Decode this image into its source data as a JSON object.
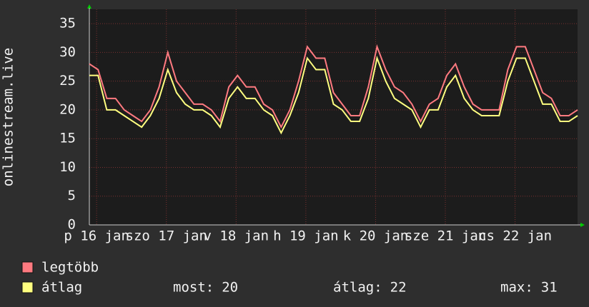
{
  "chart_data": {
    "type": "line",
    "y_label": "onlinestream.live",
    "x": [
      0,
      3,
      6,
      9,
      12,
      15,
      18,
      21,
      24,
      27,
      30,
      33,
      36,
      39,
      42,
      45,
      48,
      51,
      54,
      57,
      60,
      63,
      66,
      69,
      72,
      75,
      78,
      81,
      84,
      87,
      90,
      93,
      96,
      99,
      102,
      105,
      108,
      111,
      114,
      117,
      120,
      123,
      126,
      129,
      132,
      135,
      138,
      141,
      144,
      147,
      150,
      153,
      156,
      159,
      162,
      165,
      168
    ],
    "xlim": [
      0,
      168
    ],
    "xticks": [
      {
        "value": 2.5,
        "label": "p 16 jan"
      },
      {
        "value": 26.5,
        "label": "szo 17 jan"
      },
      {
        "value": 50.5,
        "label": "v 18 jan"
      },
      {
        "value": 74.5,
        "label": "h 19 jan"
      },
      {
        "value": 98.5,
        "label": "k 20 jan"
      },
      {
        "value": 122.5,
        "label": "sze 21 jan"
      },
      {
        "value": 146.5,
        "label": "cs 22 jan"
      }
    ],
    "ylim": [
      0,
      37.5
    ],
    "yticks": [
      0,
      5,
      10,
      15,
      20,
      25,
      30,
      35
    ],
    "grid": true,
    "series": [
      {
        "name": "legtöbb",
        "color": "#ff7a80",
        "values": [
          28,
          27,
          22,
          22,
          20,
          19,
          18,
          20,
          24,
          30,
          25,
          23,
          21,
          21,
          20,
          18,
          24,
          26,
          24,
          24,
          21,
          20,
          17,
          20,
          25,
          31,
          29,
          29,
          23,
          21,
          19,
          19,
          24,
          31,
          27,
          24,
          23,
          21,
          18,
          21,
          22,
          26,
          28,
          24,
          21,
          20,
          20,
          20,
          27,
          31,
          31,
          27,
          23,
          22,
          19,
          19,
          20
        ]
      },
      {
        "name": "átlag",
        "color": "#ffff80",
        "values": [
          26,
          26,
          20,
          20,
          19,
          18,
          17,
          19,
          22,
          27,
          23,
          21,
          20,
          20,
          19,
          17,
          22,
          24,
          22,
          22,
          20,
          19,
          16,
          19,
          23,
          29,
          27,
          27,
          21,
          20,
          18,
          18,
          22,
          29,
          25,
          22,
          21,
          20,
          17,
          20,
          20,
          24,
          26,
          22,
          20,
          19,
          19,
          19,
          25,
          29,
          29,
          25,
          21,
          21,
          18,
          18,
          19
        ]
      }
    ],
    "stats": [
      {
        "label": "most:",
        "value": 20
      },
      {
        "label": "átlag:",
        "value": 22
      },
      {
        "label": "max:",
        "value": 31
      }
    ]
  }
}
